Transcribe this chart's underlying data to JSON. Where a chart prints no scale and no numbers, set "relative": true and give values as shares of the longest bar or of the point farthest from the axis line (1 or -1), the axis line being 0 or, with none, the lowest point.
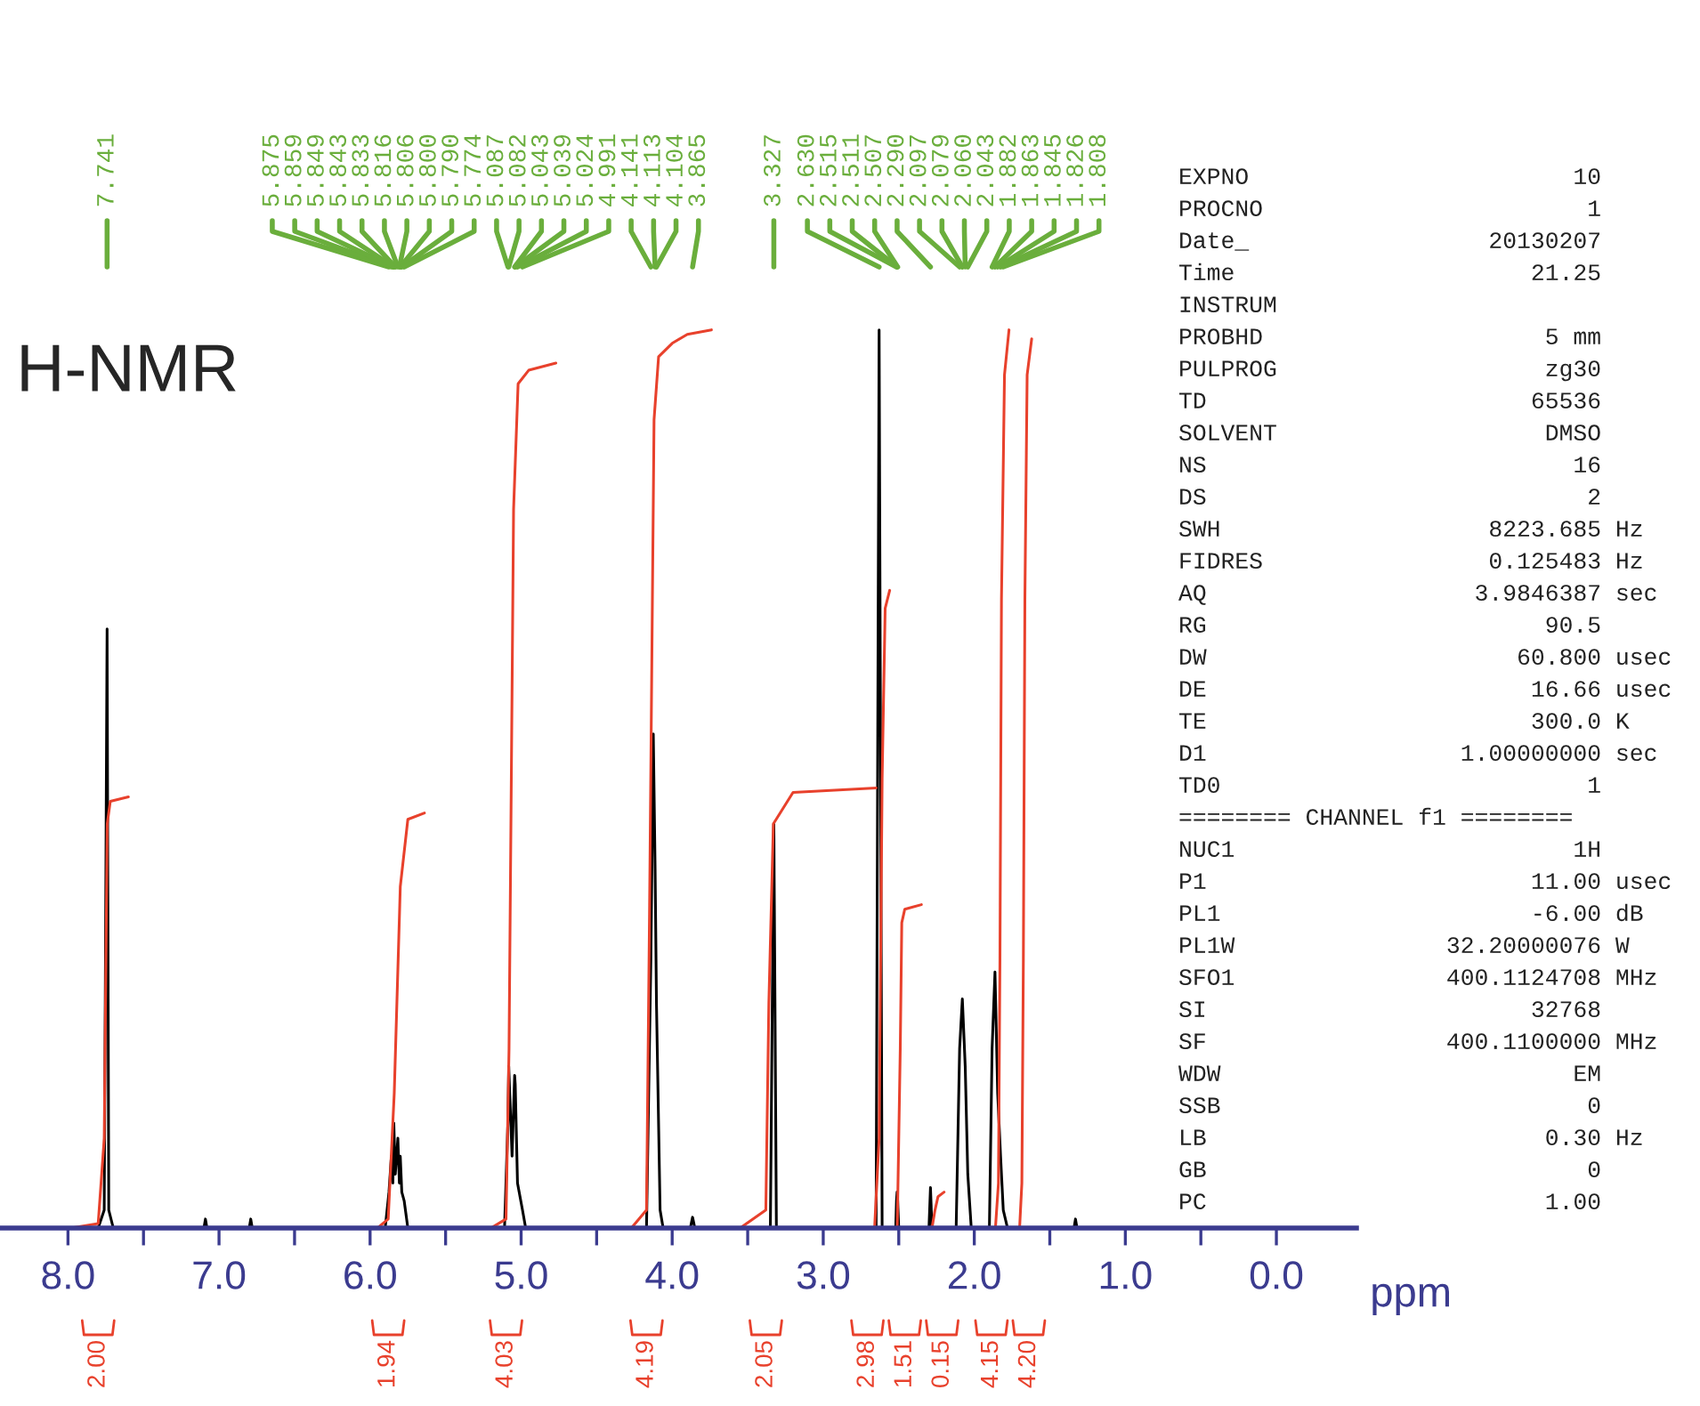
{
  "chart_data": {
    "type": "line",
    "title": "H-NMR",
    "xlabel": "ppm",
    "relative": true,
    "tick_labels": "x",
    "xlim": [
      8.45,
      -0.53
    ],
    "xticks": [
      {
        "value": 8.0,
        "label": "8.0"
      },
      {
        "value": 7.5,
        "label": null
      },
      {
        "value": 7.0,
        "label": "7.0"
      },
      {
        "value": 6.5,
        "label": null
      },
      {
        "value": 6.0,
        "label": "6.0"
      },
      {
        "value": 5.5,
        "label": null
      },
      {
        "value": 5.0,
        "label": "5.0"
      },
      {
        "value": 4.5,
        "label": null
      },
      {
        "value": 4.0,
        "label": "4.0"
      },
      {
        "value": 3.5,
        "label": null
      },
      {
        "value": 3.0,
        "label": "3.0"
      },
      {
        "value": 2.5,
        "label": null
      },
      {
        "value": 2.0,
        "label": "2.0"
      },
      {
        "value": 1.5,
        "label": null
      },
      {
        "value": 1.0,
        "label": "1.0"
      },
      {
        "value": 0.5,
        "label": null
      },
      {
        "value": 0.0,
        "label": "0.0"
      }
    ],
    "series": [
      {
        "color": "#000000",
        "x": [
          8.45,
          7.8,
          7.76,
          7.741,
          7.73,
          7.7,
          7.1,
          7.09,
          7.08,
          6.8,
          6.79,
          6.78,
          5.9,
          5.875,
          5.859,
          5.849,
          5.843,
          5.833,
          5.816,
          5.806,
          5.8,
          5.79,
          5.774,
          5.75,
          5.11,
          5.087,
          5.082,
          5.06,
          5.043,
          5.039,
          5.024,
          4.991,
          4.97,
          4.17,
          4.141,
          4.125,
          4.113,
          4.104,
          4.08,
          4.06,
          3.88,
          3.865,
          3.85,
          3.35,
          3.327,
          3.31,
          2.65,
          2.63,
          2.61,
          2.52,
          2.515,
          2.511,
          2.507,
          2.5,
          2.3,
          2.29,
          2.28,
          2.12,
          2.097,
          2.079,
          2.06,
          2.043,
          2.02,
          1.9,
          1.882,
          1.863,
          1.845,
          1.826,
          1.808,
          1.78,
          1.34,
          1.33,
          1.32,
          -0.53
        ],
        "values": [
          0,
          0,
          0.02,
          0.667,
          0.02,
          0,
          0,
          0.01,
          0,
          0,
          0.01,
          0,
          0,
          0.04,
          0.08,
          0.05,
          0.117,
          0.06,
          0.1,
          0.05,
          0.08,
          0.04,
          0.03,
          0,
          0,
          0.12,
          0.18,
          0.08,
          0.17,
          0.16,
          0.05,
          0.02,
          0,
          0,
          0.3,
          0.55,
          0.4,
          0.25,
          0.02,
          0,
          0,
          0.012,
          0,
          0,
          0.45,
          0,
          0,
          1.0,
          0,
          0,
          0.03,
          0.04,
          0.03,
          0,
          0,
          0.045,
          0,
          0,
          0.2,
          0.255,
          0.18,
          0.06,
          0,
          0,
          0.2,
          0.285,
          0.15,
          0.08,
          0.02,
          0,
          0,
          0.01,
          0,
          0
        ]
      },
      {
        "color": "#e8412c",
        "x": [
          7.98,
          7.8,
          7.76,
          7.74,
          7.72,
          7.6
        ],
        "values": [
          0,
          0.005,
          0.1,
          0.45,
          0.475,
          0.48
        ]
      },
      {
        "color": "#e8412c",
        "x": [
          5.95,
          5.88,
          5.84,
          5.8,
          5.75,
          5.64
        ],
        "values": [
          0,
          0.01,
          0.15,
          0.38,
          0.455,
          0.462
        ]
      },
      {
        "color": "#e8412c",
        "x": [
          5.2,
          5.1,
          5.08,
          5.05,
          5.02,
          4.95,
          4.77
        ],
        "values": [
          0,
          0.01,
          0.2,
          0.8,
          0.94,
          0.955,
          0.963
        ]
      },
      {
        "color": "#e8412c",
        "x": [
          4.27,
          4.17,
          4.15,
          4.12,
          4.09,
          4.0,
          3.9,
          3.74
        ],
        "values": [
          0,
          0.02,
          0.35,
          0.9,
          0.97,
          0.985,
          0.995,
          1.0
        ]
      },
      {
        "color": "#e8412c",
        "x": [
          3.55,
          3.38,
          3.36,
          3.33,
          3.2,
          2.65
        ],
        "values": [
          0,
          0.02,
          0.25,
          0.45,
          0.485,
          0.49
        ]
      },
      {
        "color": "#e8412c",
        "x": [
          2.66,
          2.63,
          2.61,
          2.59,
          2.56
        ],
        "values": [
          0,
          0.1,
          0.5,
          0.69,
          0.71
        ]
      },
      {
        "color": "#e8412c",
        "x": [
          2.51,
          2.49,
          2.48,
          2.46,
          2.35
        ],
        "values": [
          0,
          0.2,
          0.34,
          0.355,
          0.36
        ]
      },
      {
        "color": "#e8412c",
        "x": [
          2.28,
          2.26,
          2.24,
          2.2
        ],
        "values": [
          0,
          0.02,
          0.035,
          0.04
        ]
      },
      {
        "color": "#e8412c",
        "x": [
          1.86,
          1.84,
          1.83,
          1.82,
          1.8,
          1.77
        ],
        "values": [
          0,
          0.05,
          0.3,
          0.7,
          0.95,
          1.0
        ]
      },
      {
        "color": "#e8412c",
        "x": [
          1.7,
          1.685,
          1.675,
          1.665,
          1.65,
          1.62
        ],
        "values": [
          0,
          0.05,
          0.3,
          0.7,
          0.95,
          0.99
        ]
      }
    ],
    "annotations": [
      "2.00",
      "1.94",
      "4.03",
      "4.19",
      "2.05",
      "2.98",
      "1.51",
      "0.15",
      "4.15",
      "4.20",
      "7.741",
      "5.875",
      "5.859",
      "5.849",
      "5.843",
      "5.833",
      "5.816",
      "5.806",
      "5.800",
      "5.790",
      "5.774",
      "5.087",
      "5.082",
      "5.043",
      "5.039",
      "5.024",
      "4.991",
      "4.141",
      "4.113",
      "4.104",
      "3.865",
      "3.327",
      "2.630",
      "2.515",
      "2.511",
      "2.507",
      "2.290",
      "2.097",
      "2.079",
      "2.060",
      "2.043",
      "1.882",
      "1.863",
      "1.845",
      "1.826",
      "1.808",
      "EXPNO                       10",
      "PROCNO                       1",
      "Date_                 20130207",
      "Time                     21.25",
      "INSTRUM",
      "PROBHD                    5 mm",
      "PULPROG                   zg30",
      "TD                       65536",
      "SOLVENT                   DMSO",
      "NS                          16",
      "DS                           2",
      "SWH                   8223.685 Hz",
      "FIDRES                0.125483 Hz",
      "AQ                   3.9846387 sec",
      "RG                        90.5",
      "DW                      60.800 usec",
      "DE                       16.66 usec",
      "TE                       300.0 K",
      "D1                  1.00000000 sec",
      "TD0                          1",
      "======== CHANNEL f1 ========",
      "NUC1                        1H",
      "P1                       11.00 usec",
      "PL1                      -6.00 dB",
      "PL1W               32.20000076 W",
      "SFO1               400.1124708 MHz",
      "SI                       32768",
      "SF                 400.1100000 MHz",
      "WDW                         EM",
      "SSB                          0",
      "LB                        0.30 Hz",
      "GB                           0",
      "PC                        1.00"
    ]
  }
}
